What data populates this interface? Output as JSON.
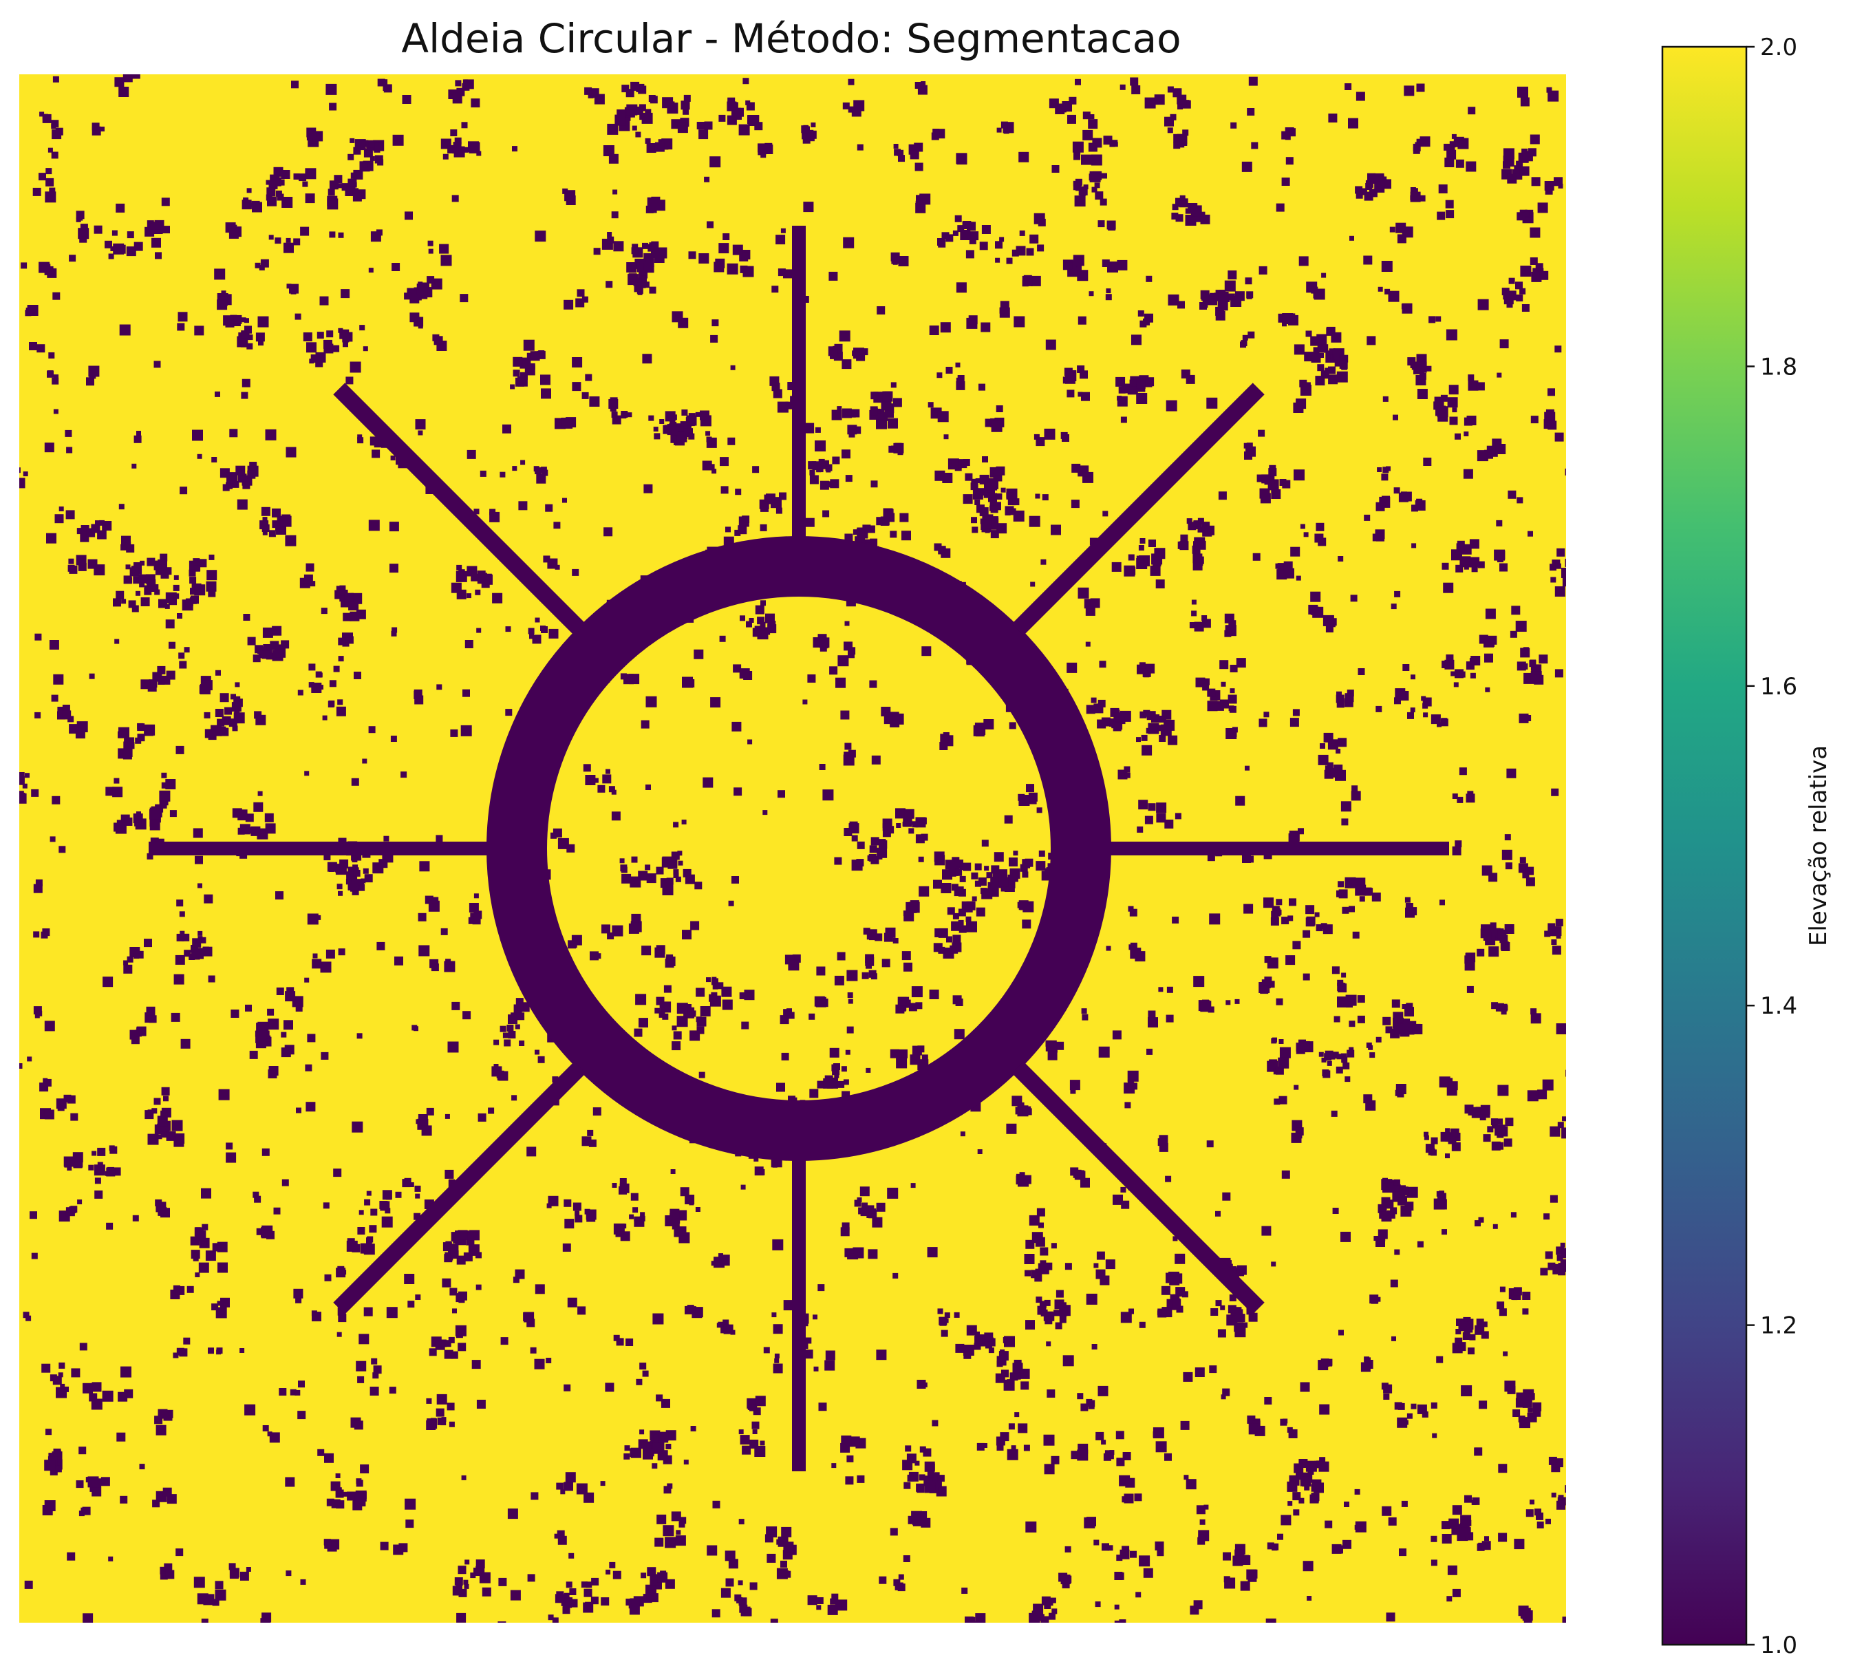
{
  "chart_data": {
    "type": "heatmap",
    "title": "Aldeia Circular - Método: Segmentacao",
    "xlabel": "",
    "ylabel": "",
    "axes_visible": false,
    "grid": false,
    "colormap": "viridis",
    "value_range": [
      1.0,
      2.0
    ],
    "values_present": [
      1,
      2
    ],
    "low_color": "#440154",
    "high_color": "#fde725",
    "background_value": 2,
    "feature_value": 1,
    "colorbar": {
      "label": "Elevação relativa",
      "ticks": [
        "1.0",
        "1.2",
        "1.4",
        "1.6",
        "1.8",
        "2.0"
      ],
      "tick_values": [
        1.0,
        1.2,
        1.4,
        1.6,
        1.8,
        2.0
      ],
      "position": "right"
    }
  }
}
